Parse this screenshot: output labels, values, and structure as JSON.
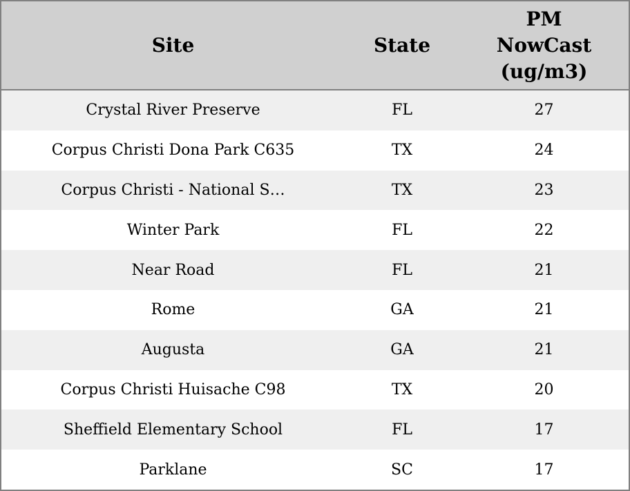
{
  "chart_data": {
    "type": "table",
    "columns": [
      "Site",
      "State",
      "PM NowCast (ug/m3)"
    ],
    "rows": [
      {
        "site": "Crystal River Preserve",
        "state": "FL",
        "pm_nowcast": 27
      },
      {
        "site": "Corpus Christi Dona Park C635",
        "state": "TX",
        "pm_nowcast": 24
      },
      {
        "site": "Corpus Christi - National S…",
        "state": "TX",
        "pm_nowcast": 23
      },
      {
        "site": "Winter Park",
        "state": "FL",
        "pm_nowcast": 22
      },
      {
        "site": "Near Road",
        "state": "FL",
        "pm_nowcast": 21
      },
      {
        "site": "Rome",
        "state": "GA",
        "pm_nowcast": 21
      },
      {
        "site": "Augusta",
        "state": "GA",
        "pm_nowcast": 21
      },
      {
        "site": "Corpus Christi Huisache C98",
        "state": "TX",
        "pm_nowcast": 20
      },
      {
        "site": "Sheffield Elementary School",
        "state": "FL",
        "pm_nowcast": 17
      },
      {
        "site": "Parklane",
        "state": "SC",
        "pm_nowcast": 17
      }
    ],
    "layout": {
      "striped": true,
      "header_align": "center",
      "cell_align": "center"
    }
  },
  "colors": {
    "border": "#808080",
    "header_bg": "#d0d0d0",
    "stripe_bg": "#efefef",
    "row_bg": "#ffffff",
    "text": "#000000"
  }
}
